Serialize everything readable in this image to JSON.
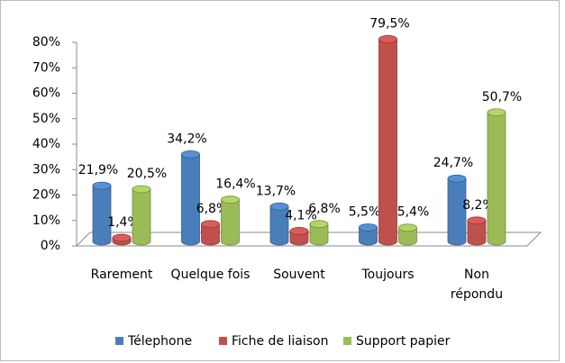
{
  "chart_data": {
    "type": "bar",
    "categories": [
      "Rarement",
      "Quelque fois",
      "Souvent",
      "Toujours",
      "Non\nrépondu"
    ],
    "series": [
      {
        "name": "Télephone",
        "color": "#4a7ebb",
        "values": [
          21.9,
          34.2,
          13.7,
          5.5,
          24.7
        ],
        "value_labels": [
          "21,9%",
          "34,2%",
          "13,7%",
          "5,5%",
          "24,7%"
        ]
      },
      {
        "name": "Fiche de liaison",
        "color": "#c0504d",
        "values": [
          1.4,
          6.8,
          4.1,
          79.5,
          8.2
        ],
        "value_labels": [
          "1,4%",
          "6,8%",
          "4,1%",
          "79,5%",
          "8,2%"
        ]
      },
      {
        "name": "Support papier",
        "color": "#9bbb59",
        "values": [
          20.5,
          16.4,
          6.8,
          5.4,
          50.7
        ],
        "value_labels": [
          "20,5%",
          "16,4%",
          "6,8%",
          "5,4%",
          "50,7%"
        ]
      }
    ],
    "ylim": [
      0,
      80
    ],
    "yticks": [
      {
        "value": 0,
        "label": "0%"
      },
      {
        "value": 10,
        "label": "10%"
      },
      {
        "value": 20,
        "label": "20%"
      },
      {
        "value": 30,
        "label": "30%"
      },
      {
        "value": 40,
        "label": "40%"
      },
      {
        "value": 50,
        "label": "50%"
      },
      {
        "value": 60,
        "label": "60%"
      },
      {
        "value": 70,
        "label": "70%"
      },
      {
        "value": 80,
        "label": "80%"
      }
    ],
    "grid": false,
    "legend": "bottom"
  }
}
